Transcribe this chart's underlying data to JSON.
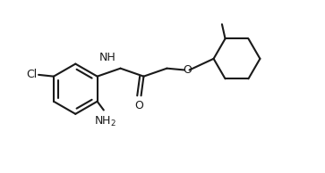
{
  "background_color": "#ffffff",
  "line_color": "#1a1a1a",
  "text_color": "#1a1a1a",
  "line_width": 1.5,
  "font_size": 9,
  "figsize": [
    3.63,
    1.94
  ],
  "dpi": 100,
  "xlim": [
    0,
    10
  ],
  "ylim": [
    0,
    5.35
  ]
}
